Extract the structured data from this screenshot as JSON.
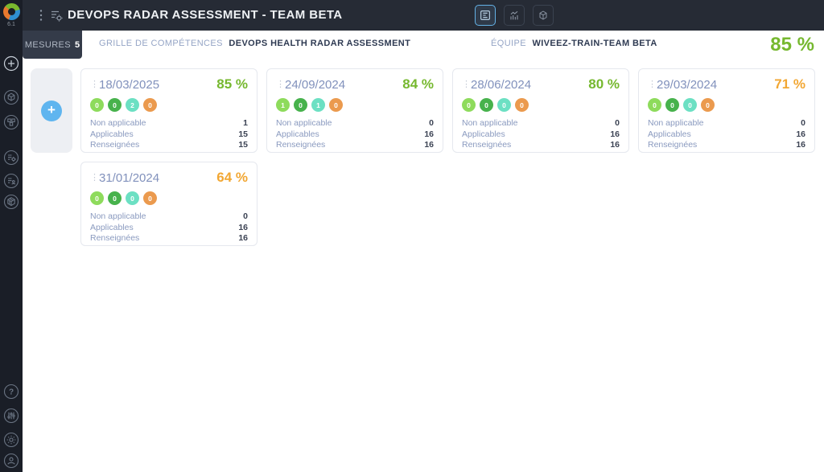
{
  "app": {
    "version": "6.1"
  },
  "topbar": {
    "title": "DEVOPS RADAR ASSESSMENT - TEAM BETA",
    "view_buttons": [
      {
        "name": "cards-view",
        "active": true
      },
      {
        "name": "chart-view",
        "active": false
      },
      {
        "name": "cube-view",
        "active": false
      }
    ]
  },
  "tabbar": {
    "tab_label": "MESURES",
    "tab_count": "5",
    "breadcrumb_label": "GRILLE DE COMPÉTENCES",
    "breadcrumb_value": "DEVOPS HEALTH RADAR ASSESSMENT",
    "team_label": "ÉQUIPE",
    "team_value": "WIVEEZ-TRAIN-TEAM BETA",
    "overall_score": "85 %"
  },
  "cards": {
    "labels": {
      "non_applicable": "Non applicable",
      "applicables": "Applicables",
      "renseignees": "Renseignées"
    },
    "badge_colors": [
      "#8edb5c",
      "#47b24c",
      "#6ce0c3",
      "#eb9a4e"
    ],
    "items": [
      {
        "date": "18/03/2025",
        "score": "85 %",
        "score_color": "green",
        "badges": [
          0,
          0,
          2,
          0
        ],
        "non_applicable": "1",
        "applicables": "15",
        "renseignees": "15"
      },
      {
        "date": "24/09/2024",
        "score": "84 %",
        "score_color": "green",
        "badges": [
          1,
          0,
          1,
          0
        ],
        "non_applicable": "0",
        "applicables": "16",
        "renseignees": "16"
      },
      {
        "date": "28/06/2024",
        "score": "80 %",
        "score_color": "green",
        "badges": [
          0,
          0,
          0,
          0
        ],
        "non_applicable": "0",
        "applicables": "16",
        "renseignees": "16"
      },
      {
        "date": "29/03/2024",
        "score": "71 %",
        "score_color": "orange",
        "badges": [
          0,
          0,
          0,
          0
        ],
        "non_applicable": "0",
        "applicables": "16",
        "renseignees": "16"
      },
      {
        "date": "31/01/2024",
        "score": "64 %",
        "score_color": "orange",
        "badges": [
          0,
          0,
          0,
          0
        ],
        "non_applicable": "0",
        "applicables": "16",
        "renseignees": "16"
      }
    ]
  },
  "colors": {
    "green": "#76b82f",
    "orange": "#f2a733"
  }
}
